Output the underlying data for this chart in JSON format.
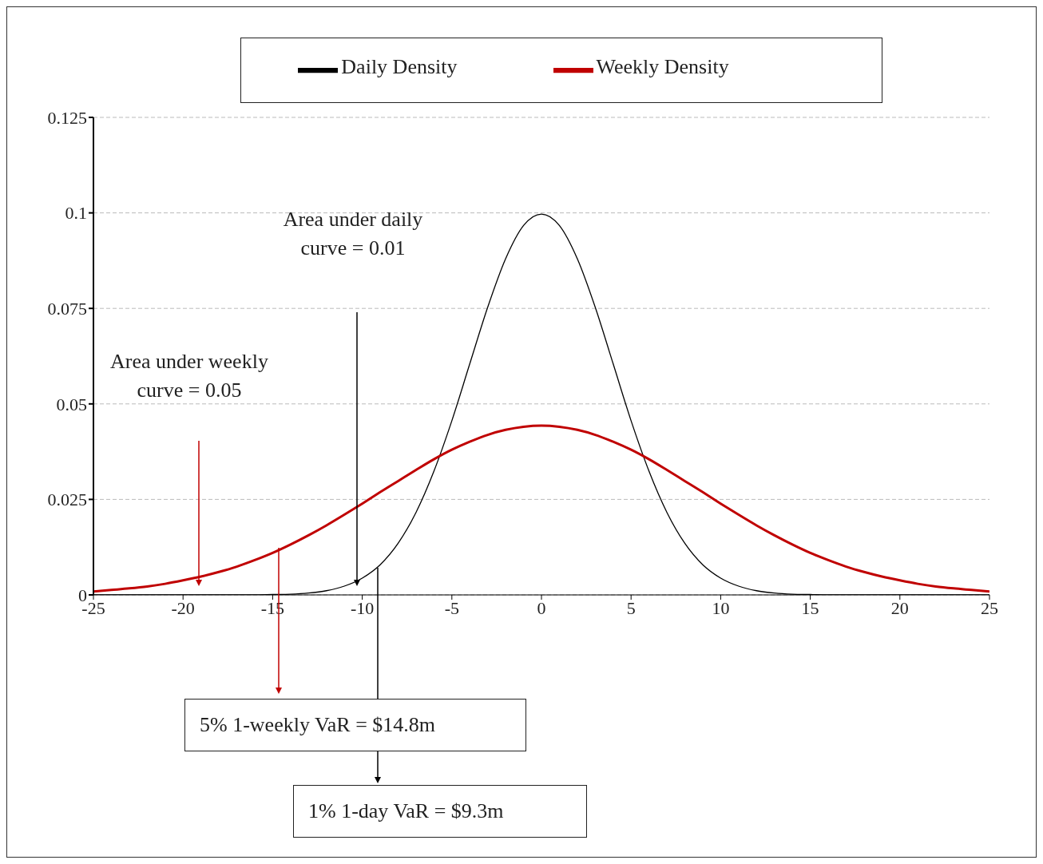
{
  "chart_data": {
    "type": "line",
    "x": [
      -25,
      -24,
      -23,
      -22,
      -21,
      -20,
      -19,
      -18,
      -17,
      -16,
      -15,
      -14,
      -13,
      -12,
      -11,
      -10,
      -9,
      -8,
      -7,
      -6,
      -5,
      -4,
      -3,
      -2,
      -1,
      0,
      1,
      2,
      3,
      4,
      5,
      6,
      7,
      8,
      9,
      10,
      11,
      12,
      13,
      14,
      15,
      16,
      17,
      18,
      19,
      20,
      21,
      22,
      23,
      24,
      25
    ],
    "series": [
      {
        "name": "Daily Density",
        "color": "#000000",
        "values": [
          0,
          0,
          0,
          0,
          0,
          0,
          0,
          0,
          0,
          0,
          0.0001,
          0.0002,
          0.0005,
          0.0011,
          0.0023,
          0.0044,
          0.0079,
          0.0135,
          0.0216,
          0.0324,
          0.0456,
          0.0605,
          0.0753,
          0.088,
          0.0967,
          0.0997,
          0.0967,
          0.088,
          0.0753,
          0.0605,
          0.0456,
          0.0324,
          0.0216,
          0.0135,
          0.0079,
          0.0044,
          0.0023,
          0.0011,
          0.0005,
          0.0002,
          0.0001,
          0,
          0,
          0,
          0,
          0,
          0,
          0,
          0,
          0,
          0
        ]
      },
      {
        "name": "Weekly Density",
        "color": "#c00000",
        "values": [
          0.0009,
          0.0013,
          0.0017,
          0.0022,
          0.0029,
          0.0038,
          0.0048,
          0.006,
          0.0074,
          0.0091,
          0.011,
          0.0132,
          0.0156,
          0.0182,
          0.021,
          0.0239,
          0.0269,
          0.0298,
          0.0327,
          0.0355,
          0.038,
          0.0401,
          0.0419,
          0.0432,
          0.044,
          0.0443,
          0.044,
          0.0432,
          0.0419,
          0.0401,
          0.038,
          0.0355,
          0.0327,
          0.0298,
          0.0269,
          0.0239,
          0.021,
          0.0182,
          0.0156,
          0.0132,
          0.011,
          0.0091,
          0.0074,
          0.006,
          0.0048,
          0.0038,
          0.0029,
          0.0022,
          0.0017,
          0.0013,
          0.0009
        ]
      }
    ],
    "xlim": [
      -25,
      25
    ],
    "xticks": [
      -25,
      -20,
      -15,
      -10,
      -5,
      0,
      5,
      10,
      15,
      20,
      25
    ],
    "ylim": [
      0,
      0.125
    ],
    "yticks": [
      0,
      0.025,
      0.05,
      0.075,
      0.1,
      0.125
    ],
    "grid": "y",
    "legend": "top",
    "marker": "none",
    "line_style": "solid",
    "annotations": [
      "Area under daily curve = 0.01",
      "Area under weekly curve = 0.05",
      "5% 1-weekly VaR = $14.8m",
      "1% 1-day VaR = $9.3m"
    ]
  }
}
